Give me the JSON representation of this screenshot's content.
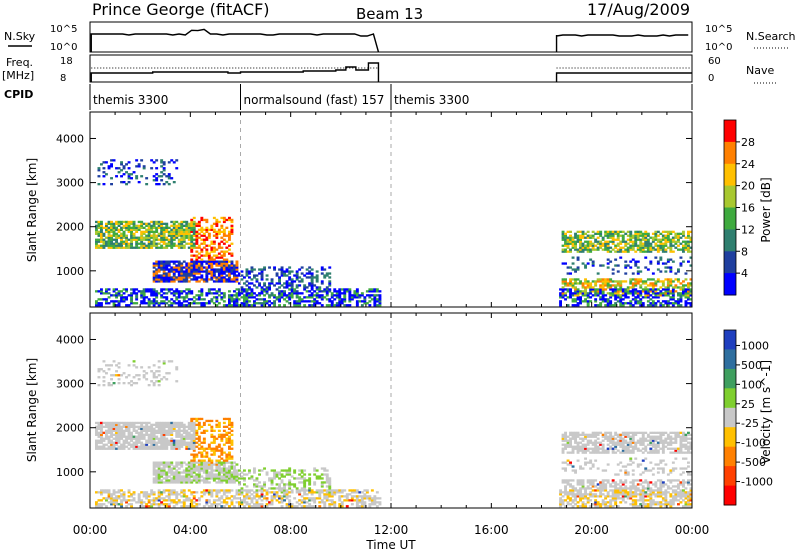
{
  "header": {
    "station": "Prince George (fitACF)",
    "beam": "Beam 13",
    "date": "17/Aug/2009"
  },
  "strip_labels": {
    "nsky": "N.Sky",
    "nsky_ticks": [
      "10^5",
      "10^0"
    ],
    "nsearch": "N.Search",
    "nsearch_ticks": [
      "10^5",
      "10^0"
    ],
    "freq_line1": "Freq.",
    "freq_line2": "[MHz]",
    "freq_ticks": [
      "18",
      "8"
    ],
    "nave": "Nave",
    "nave_ticks": [
      "60",
      "0"
    ],
    "cpid": "CPID"
  },
  "cpid_segments": [
    {
      "label": "themis 3300",
      "start": 0,
      "end": 6
    },
    {
      "label": "normalsound (fast) 157",
      "start": 6,
      "end": 12
    },
    {
      "label": "themis 3300",
      "start": 12,
      "end": 24
    }
  ],
  "chart_data": [
    {
      "type": "heatmap",
      "name": "power",
      "ylabel": "Slant Range [km]",
      "ylim": [
        180,
        4600
      ],
      "yticks": [
        "1000",
        "2000",
        "3000",
        "4000"
      ],
      "xlim": [
        0,
        24
      ],
      "colorbar_label": "Power [dB]",
      "colorbar_ticks": [
        "4",
        "8",
        "12",
        "16",
        "20",
        "24",
        "28"
      ],
      "colors": [
        "#0000ff",
        "#1f3f9f",
        "#2f7f6f",
        "#3faa3f",
        "#a8c830",
        "#ffc000",
        "#ff8000",
        "#ff0000"
      ],
      "data_gaps": [
        [
          11.5,
          18.6
        ]
      ]
    },
    {
      "type": "heatmap",
      "name": "velocity",
      "ylabel": "Slant Range [km]",
      "ylim": [
        180,
        4600
      ],
      "yticks": [
        "1000",
        "2000",
        "3000",
        "4000"
      ],
      "xlim": [
        0,
        24
      ],
      "xlabel": "Time UT",
      "xticks": [
        "00:00",
        "04:00",
        "08:00",
        "12:00",
        "16:00",
        "20:00",
        "00:00"
      ],
      "colorbar_label": "Velocity [m s^-1]",
      "colorbar_ticks": [
        "1000",
        "500",
        "100",
        "25",
        "-25",
        "-100",
        "-500",
        "-1000"
      ],
      "colors": [
        "#1f3fbf",
        "#2f6f9f",
        "#3f9f5f",
        "#7fcf2f",
        "#c8c8c8",
        "#ffc000",
        "#ff8000",
        "#ff4000",
        "#ff0000"
      ],
      "data_gaps": [
        [
          11.5,
          18.6
        ]
      ]
    }
  ]
}
